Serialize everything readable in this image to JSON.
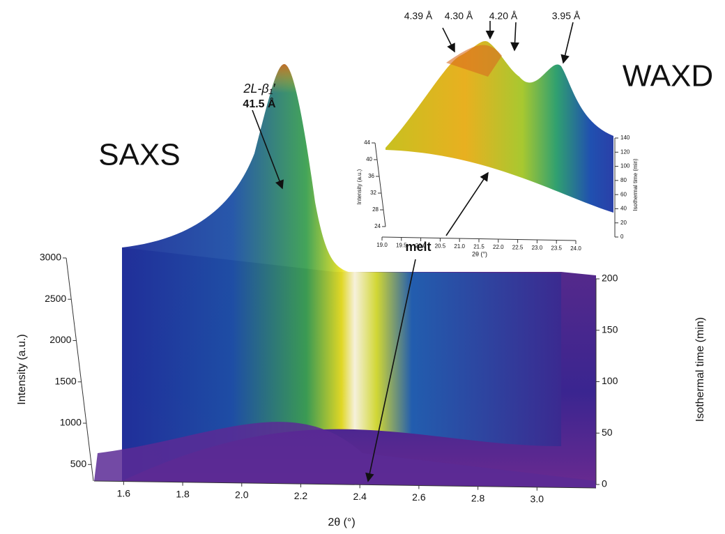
{
  "chart_data": [
    {
      "type": "surface",
      "title": "SAXS",
      "x_label": "2θ (°)",
      "y_label": "Intensity (a.u.)",
      "y2_label": "Isothermal time (min)",
      "xlim": [
        1.5,
        3.2
      ],
      "xticks": [
        1.6,
        1.8,
        {
          "value": 2.0,
          "label": "2.0"
        },
        2.2,
        2.4,
        2.6,
        2.8,
        {
          "value": 3.0,
          "label": "3.0"
        }
      ],
      "ylim": [
        300,
        3000
      ],
      "yticks": [
        500,
        1000,
        1500,
        2000,
        2500,
        3000
      ],
      "y2lim": [
        0,
        200
      ],
      "y2ticks": [
        0,
        50,
        100,
        150,
        200
      ],
      "annotations": [
        "2L-β₁′",
        "41.5 Å",
        "melt"
      ]
    },
    {
      "type": "surface",
      "title": "WAXD",
      "x_label": "2θ (°)",
      "y_label": "Intensity (a.u.)",
      "y2_label": "Isothermal time (min)",
      "xlim": [
        19.0,
        24.0
      ],
      "xticks": [
        {
          "value": 19.0,
          "label": "19.0"
        },
        19.5,
        {
          "value": 20.0,
          "label": "20.0"
        },
        20.5,
        {
          "value": 21.0,
          "label": "21.0"
        },
        21.5,
        {
          "value": 22.0,
          "label": "22.0"
        },
        22.5,
        {
          "value": 23.0,
          "label": "23.0"
        },
        23.5,
        {
          "value": 24.0,
          "label": "24.0"
        }
      ],
      "ylim": [
        24,
        44
      ],
      "yticks": [
        24,
        28,
        32,
        36,
        40,
        44
      ],
      "y2lim": [
        0,
        140
      ],
      "y2ticks": [
        0,
        20,
        40,
        60,
        80,
        100,
        120,
        140
      ],
      "annotations": [
        "4.39 Å",
        "4.30 Å",
        "4.20 Å",
        "3.95 Å"
      ]
    }
  ]
}
